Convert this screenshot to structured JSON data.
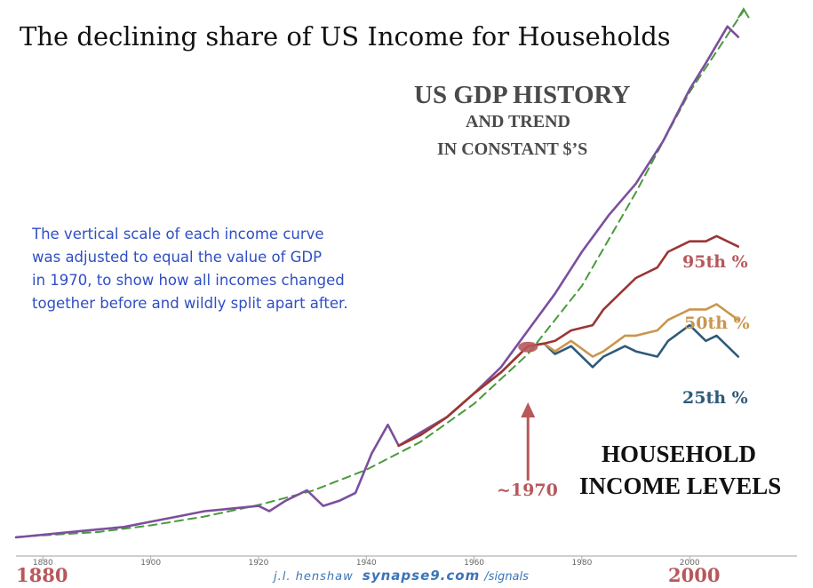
{
  "title": "The declining share of US Income for Households",
  "gdp_heading": {
    "line1": "US GDP HISTORY",
    "line2": "AND TREND",
    "line3": "IN CONSTANT $’S"
  },
  "note": [
    "The vertical scale of each income curve",
    "was adjusted to equal the value of GDP",
    "in 1970, to show how all incomes changed",
    "together before and wildly split apart after."
  ],
  "labels": {
    "p95": "95th %",
    "p50": "50th %",
    "p25": "25th %",
    "household_1": "HOUSEHOLD",
    "household_2": "INCOME LEVELS",
    "marker_1970": "~1970"
  },
  "year_start": "1880",
  "year_end": "2000",
  "credit": {
    "author": "j.l. henshaw",
    "site": "synapse9.com",
    "path": "/signals"
  },
  "colors": {
    "gdp": "#7b4f9e",
    "trend": "#4a9a3c",
    "p95": "#9c3535",
    "p50": "#c8964f",
    "p25": "#2e5a7a",
    "marker": "#b7585b"
  },
  "chart_data": {
    "type": "line",
    "x_ticks": [
      "1880",
      "1900",
      "1920",
      "1940",
      "1960",
      "1980",
      "2000"
    ],
    "x_range": [
      1875,
      2012
    ],
    "y_range": [
      0,
      100
    ],
    "series": [
      {
        "key": "gdp",
        "x": [
          1875,
          1880,
          1885,
          1890,
          1895,
          1900,
          1905,
          1910,
          1915,
          1920,
          1922,
          1925,
          1929,
          1932,
          1935,
          1938,
          1941,
          1944,
          1946,
          1950,
          1955,
          1960,
          1965,
          1970,
          1975,
          1980,
          1985,
          1990,
          1995,
          2000,
          2003,
          2007,
          2009
        ],
        "y": [
          0.5,
          1,
          1.5,
          2,
          2.5,
          3.5,
          4.5,
          5.5,
          6,
          6.5,
          5.5,
          7.5,
          9.5,
          6.5,
          7.5,
          9,
          16.5,
          22,
          18,
          20.5,
          23.5,
          28,
          33,
          40,
          47,
          55,
          62,
          68,
          76,
          86,
          91,
          98,
          96
        ]
      },
      {
        "key": "trend",
        "x": [
          1875,
          1890,
          1900,
          1910,
          1920,
          1930,
          1940,
          1950,
          1960,
          1970,
          1980,
          1990,
          2000,
          2010
        ],
        "y": [
          0.6,
          1.5,
          2.8,
          4.5,
          6.7,
          9.4,
          13.4,
          18.7,
          26,
          35.5,
          48.5,
          66.3,
          85.5,
          101
        ]
      },
      {
        "key": "p95",
        "x": [
          1946,
          1950,
          1955,
          1960,
          1965,
          1970,
          1973,
          1975,
          1978,
          1982,
          1984,
          1988,
          1990,
          1994,
          1996,
          2000,
          2003,
          2005,
          2009
        ],
        "y": [
          18,
          20,
          23.5,
          28,
          32,
          37,
          37.5,
          38,
          40,
          41,
          44,
          48,
          50,
          52,
          55,
          57,
          57,
          58,
          56
        ]
      },
      {
        "key": "p50",
        "x": [
          1946,
          1950,
          1955,
          1960,
          1965,
          1970,
          1973,
          1975,
          1978,
          1982,
          1984,
          1988,
          1990,
          1994,
          1996,
          2000,
          2003,
          2005,
          2009
        ],
        "y": [
          18,
          20,
          23.5,
          28,
          32,
          37,
          37.5,
          36,
          38,
          35,
          36,
          39,
          39,
          40,
          42,
          44,
          44,
          45,
          42
        ]
      },
      {
        "key": "p25",
        "x": [
          1946,
          1950,
          1955,
          1960,
          1965,
          1970,
          1973,
          1975,
          1978,
          1982,
          1984,
          1988,
          1990,
          1994,
          1996,
          2000,
          2003,
          2005,
          2009
        ],
        "y": [
          18,
          20,
          23.5,
          28,
          32,
          37,
          37.5,
          35.5,
          37,
          33,
          35,
          37,
          36,
          35,
          38,
          41,
          38,
          39,
          35
        ]
      }
    ]
  }
}
